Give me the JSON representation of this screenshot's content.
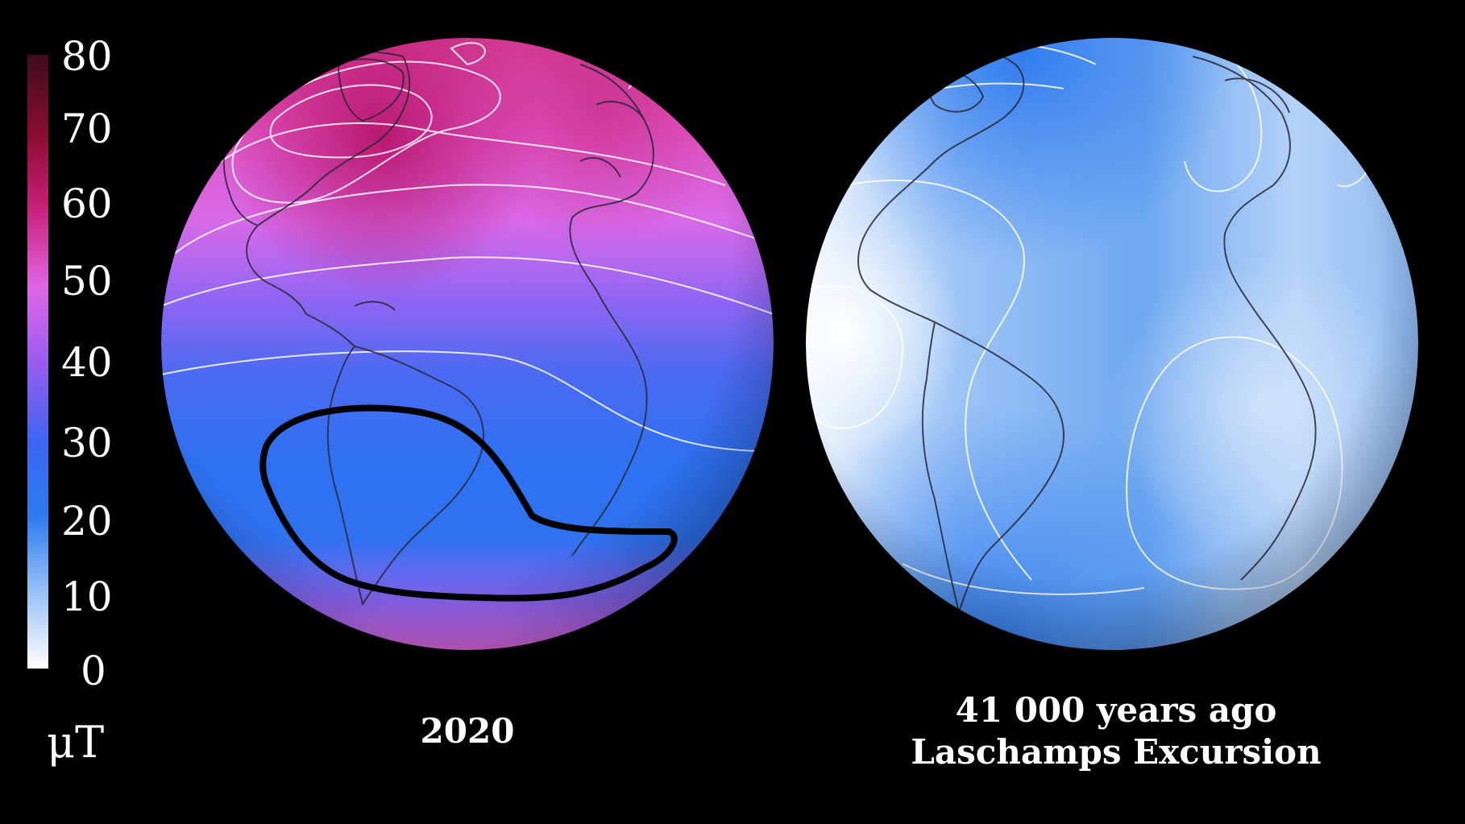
{
  "colorbar": {
    "ticks": [
      "80",
      "70",
      "60",
      "50",
      "40",
      "30",
      "20",
      "10",
      "0"
    ],
    "unit": "μT",
    "range": [
      0,
      80
    ],
    "colors": [
      "#ffffff",
      "#1e6ff0",
      "#7b5cf0",
      "#e868e8",
      "#b0104a",
      "#3d0c1c"
    ]
  },
  "panels": [
    {
      "caption": "2020",
      "field_range_uT": [
        22,
        65
      ],
      "anomaly_outline": "South Atlantic Anomaly"
    },
    {
      "caption_line1": "41 000 years ago",
      "caption_line2": "Laschamps Excursion",
      "field_range_uT": [
        2,
        25
      ]
    }
  ]
}
